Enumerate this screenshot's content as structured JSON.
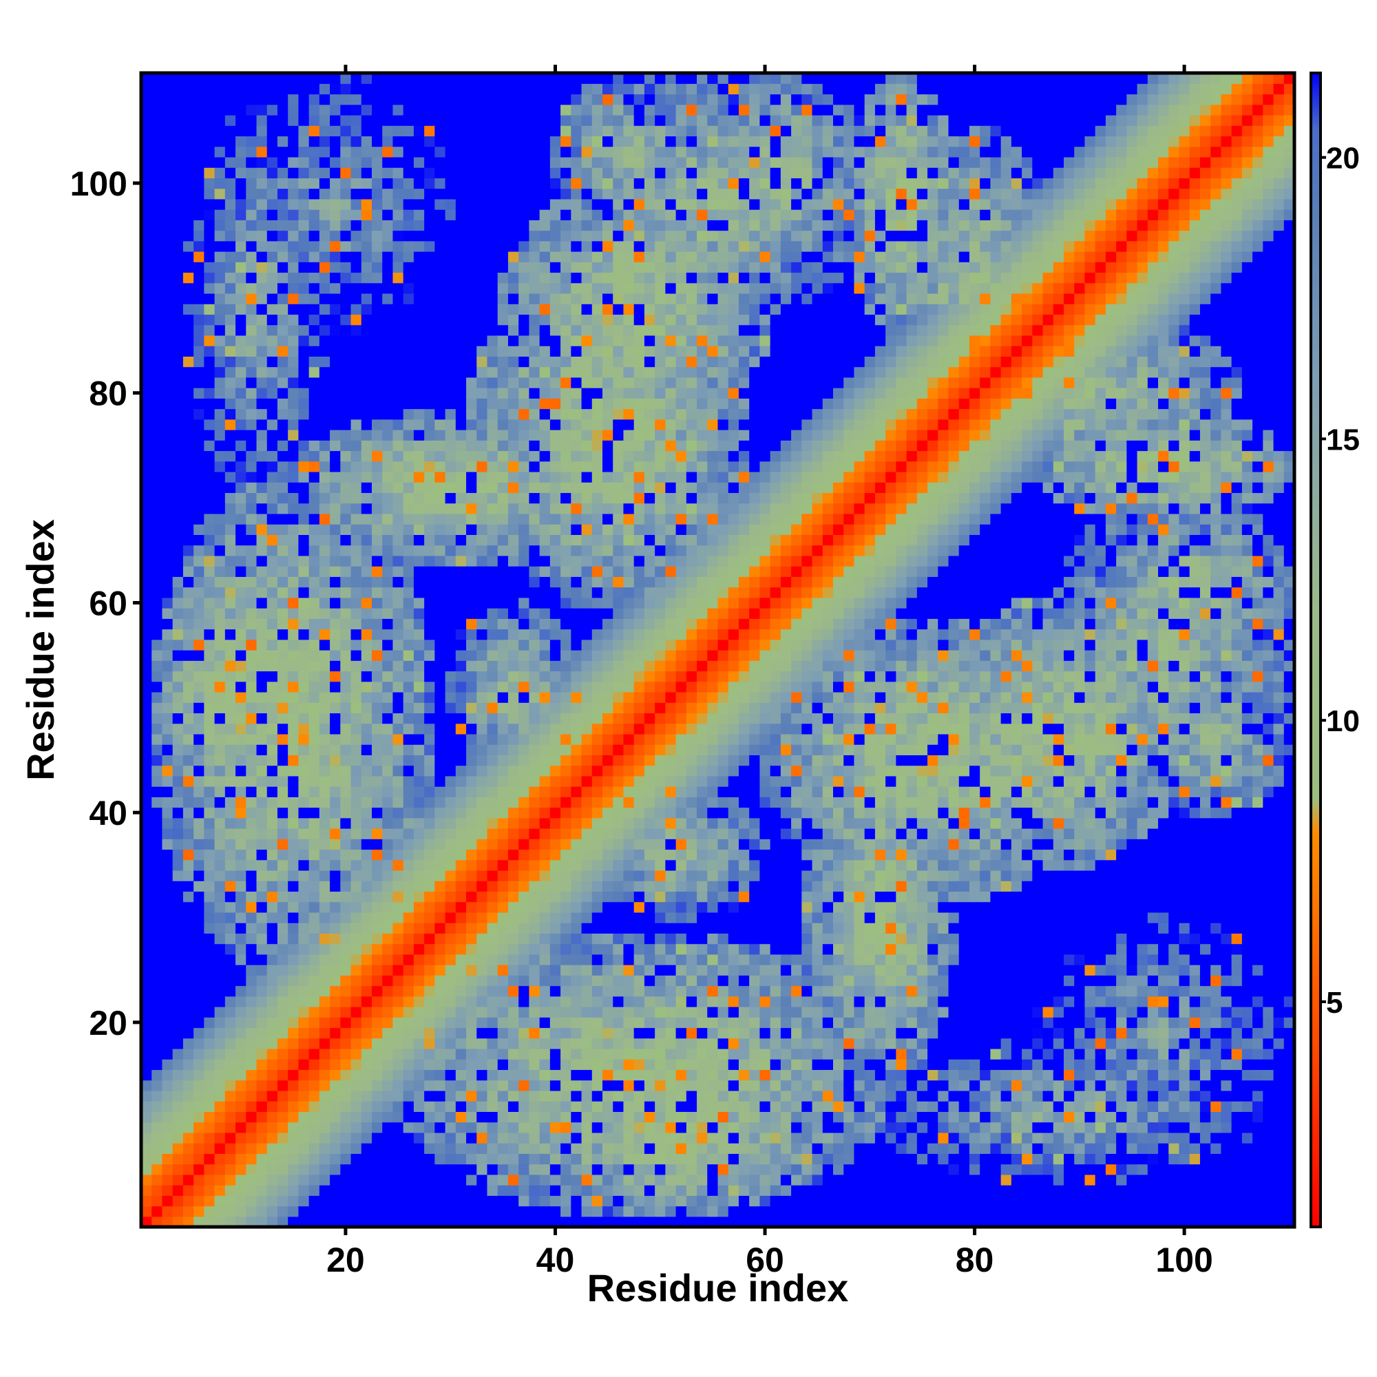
{
  "chart_data": {
    "type": "heatmap",
    "title": "",
    "xlabel": "Residue index",
    "ylabel": "Residue index",
    "n_residues": 110,
    "xlim": [
      1,
      110
    ],
    "ylim": [
      1,
      110
    ],
    "x_ticks": [
      20,
      40,
      60,
      80,
      100
    ],
    "y_ticks": [
      20,
      40,
      60,
      80,
      100
    ],
    "value_description": "pairwise residue distance (symmetric contact map)",
    "colorbar": {
      "range": [
        1,
        21.5
      ],
      "ticks": [
        5,
        10,
        15,
        20
      ],
      "placement": "right",
      "stops": [
        {
          "value": 1,
          "color": "#ff0000"
        },
        {
          "value": 4,
          "color": "#ff4500"
        },
        {
          "value": 8,
          "color": "#ff8c00"
        },
        {
          "value": 8.6,
          "color": "#9cbf7f"
        },
        {
          "value": 12,
          "color": "#9cb98a"
        },
        {
          "value": 16,
          "color": "#7f9fb3"
        },
        {
          "value": 19,
          "color": "#5a7fb8"
        },
        {
          "value": 20.5,
          "color": "#4a6ec8"
        },
        {
          "value": 21.5,
          "color": "#0000ff"
        }
      ]
    },
    "cutoff_value": 21.5,
    "background_color": "#0000ff",
    "structure": {
      "diagonal_band_width": 7,
      "contact_regions": [
        {
          "x": [
            2,
            24
          ],
          "y": [
            30,
            70
          ],
          "min": 10
        },
        {
          "x": [
            5,
            18
          ],
          "y": [
            70,
            107
          ],
          "min": 14
        },
        {
          "x": [
            15,
            45
          ],
          "y": [
            64,
            78
          ],
          "min": 10
        },
        {
          "x": [
            35,
            60
          ],
          "y": [
            75,
            100
          ],
          "min": 10
        },
        {
          "x": [
            40,
            54
          ],
          "y": [
            96,
            110
          ],
          "min": 12
        },
        {
          "x": [
            55,
            68
          ],
          "y": [
            92,
            110
          ],
          "min": 11
        },
        {
          "x": [
            68,
            78
          ],
          "y": [
            86,
            110
          ],
          "min": 10
        },
        {
          "x": [
            25,
            72
          ],
          "y": [
            2,
            28
          ],
          "min": 10
        },
        {
          "x": [
            42,
            62
          ],
          "y": [
            2,
            16
          ],
          "min": 9
        },
        {
          "x": [
            60,
            92
          ],
          "y": [
            32,
            58
          ],
          "min": 10
        },
        {
          "x": [
            88,
            110
          ],
          "y": [
            40,
            72
          ],
          "min": 12
        },
        {
          "x": [
            74,
            105
          ],
          "y": [
            72,
            88
          ],
          "min": 11
        },
        {
          "x": [
            86,
            110
          ],
          "y": [
            8,
            30
          ],
          "min": 15
        },
        {
          "x": [
            30,
            42
          ],
          "y": [
            44,
            60
          ],
          "min": 12
        }
      ]
    }
  }
}
